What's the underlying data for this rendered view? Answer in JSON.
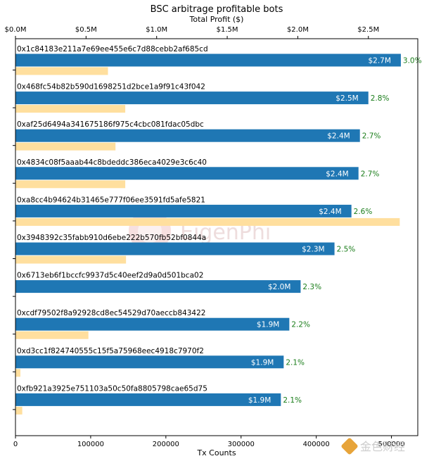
{
  "chart_data": {
    "type": "bar",
    "orientation": "horizontal",
    "title": "BSC arbitrage profitable bots",
    "top_axis_label": "Total Profit ($)",
    "bottom_axis_label": "Tx Counts",
    "top_axis": {
      "range": [
        0,
        2.85
      ],
      "ticks": [
        0,
        0.5,
        1.0,
        1.5,
        2.0,
        2.5
      ],
      "tick_labels": [
        "$0.0M",
        "$0.5M",
        "$1.0M",
        "$1.5M",
        "$2.0M",
        "$2.5M"
      ]
    },
    "bottom_axis": {
      "range": [
        0,
        535000
      ],
      "ticks": [
        0,
        100000,
        200000,
        300000,
        400000,
        500000
      ],
      "tick_labels": [
        "0",
        "100000",
        "200000",
        "300000",
        "400000",
        "500000"
      ]
    },
    "bots": [
      {
        "address": "0x1c84183e211a7e69ee455e6c7d88cebb2af685cd",
        "profit_m": 2.73,
        "profit_label": "$2.7M",
        "pct_label": "3.0%",
        "tx_count": 123000
      },
      {
        "address": "0x468fc54b82b590d1698251d2bce1a9f91c43f042",
        "profit_m": 2.5,
        "profit_label": "$2.5M",
        "pct_label": "2.8%",
        "tx_count": 146000
      },
      {
        "address": "0xaf25d6494a341675186f975c4cbc081fdac05dbc",
        "profit_m": 2.44,
        "profit_label": "$2.4M",
        "pct_label": "2.7%",
        "tx_count": 133000
      },
      {
        "address": "0x4834c08f5aaab44c8bdeddc386eca4029e3c6c40",
        "profit_m": 2.43,
        "profit_label": "$2.4M",
        "pct_label": "2.7%",
        "tx_count": 146000
      },
      {
        "address": "0xa8cc4b94624b31465e777f06ee3591fd5afe5821",
        "profit_m": 2.38,
        "profit_label": "$2.4M",
        "pct_label": "2.6%",
        "tx_count": 511000
      },
      {
        "address": "0x3948392c35fabb910d6ebe222b570fb52bf0844a",
        "profit_m": 2.26,
        "profit_label": "$2.3M",
        "pct_label": "2.5%",
        "tx_count": 147000
      },
      {
        "address": "0x6713eb6f1bccfc9937d5c40eef2d9a0d501bca02",
        "profit_m": 2.02,
        "profit_label": "$2.0M",
        "pct_label": "2.3%",
        "tx_count": 0
      },
      {
        "address": "0xcdf79502f8a92928cd8ec54529d70aeccb843422",
        "profit_m": 1.94,
        "profit_label": "$1.9M",
        "pct_label": "2.2%",
        "tx_count": 97000
      },
      {
        "address": "0xd3cc1f824740555c15f5a75968eec4918c7970f2",
        "profit_m": 1.9,
        "profit_label": "$1.9M",
        "pct_label": "2.1%",
        "tx_count": 6500
      },
      {
        "address": "0xfb921a3925e751103a50c50fa8805798cae65d75",
        "profit_m": 1.88,
        "profit_label": "$1.9M",
        "pct_label": "2.1%",
        "tx_count": 9000
      }
    ],
    "colors": {
      "profit_bar": "#1f77b4",
      "tx_bar": "#ffdf9e",
      "pct_text": "#1a7d1a"
    },
    "grid": false,
    "legend": "none"
  },
  "watermark": {
    "text": "EigenPhi"
  },
  "badge": {
    "text": "金色财经"
  }
}
